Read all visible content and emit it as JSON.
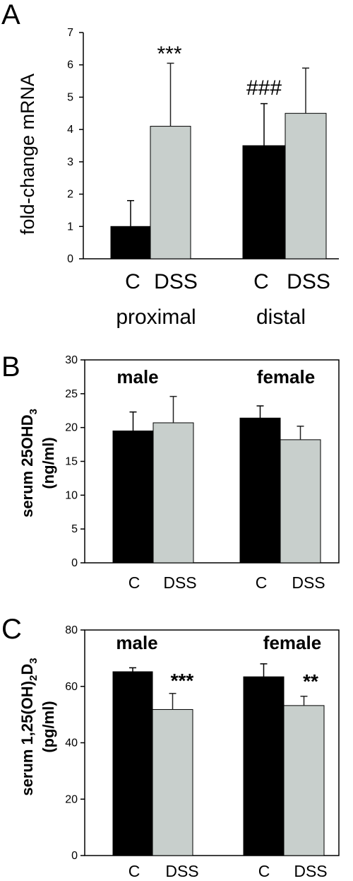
{
  "panels": [
    {
      "letter": "A",
      "ylabel_main": "fold-change mRNA",
      "ylabel_sub": "",
      "ylabel_sub2": "",
      "yticks": [
        "0",
        "1",
        "2",
        "3",
        "4",
        "5",
        "6",
        "7"
      ],
      "categories": [
        "C",
        "DSS",
        "C",
        "DSS"
      ],
      "groups": [
        "proximal",
        "distal"
      ],
      "annotations": [
        "***",
        "###"
      ]
    },
    {
      "letter": "B",
      "ylabel_main": "serum 25OHD",
      "ylabel_sub": "3",
      "ylabel_sub2": "",
      "ylabel_line2": "(ng/ml)",
      "yticks": [
        "0",
        "5",
        "10",
        "15",
        "20",
        "25",
        "30"
      ],
      "categories": [
        "C",
        "DSS",
        "C",
        "DSS"
      ],
      "groups": [
        "male",
        "female"
      ],
      "annotations": []
    },
    {
      "letter": "C",
      "ylabel_main": "serum 1,25(OH)",
      "ylabel_sub": "2",
      "ylabel_mid": "D",
      "ylabel_sub2": "3",
      "ylabel_line2": "(pg/ml)",
      "yticks": [
        "0",
        "20",
        "40",
        "60",
        "80"
      ],
      "categories": [
        "C",
        "DSS",
        "C",
        "DSS"
      ],
      "groups": [
        "male",
        "female"
      ],
      "annotations": [
        "***",
        "**"
      ]
    }
  ],
  "colors": {
    "control": "#000000",
    "dss": "#c8cfcc",
    "axis": "#000000"
  },
  "chart_data": [
    {
      "type": "bar",
      "panel": "A",
      "ylabel": "fold-change mRNA",
      "ylim": [
        0,
        7
      ],
      "categories": [
        "proximal C",
        "proximal DSS",
        "distal C",
        "distal DSS"
      ],
      "series": [
        {
          "values": [
            1.0,
            4.1,
            3.5,
            4.5
          ],
          "errors": [
            0.8,
            1.95,
            1.3,
            1.4
          ]
        }
      ],
      "annotations": [
        {
          "text": "***",
          "category": "proximal DSS"
        },
        {
          "text": "###",
          "category": "distal C"
        }
      ]
    },
    {
      "type": "bar",
      "panel": "B",
      "ylabel": "serum 25OHD3 (ng/ml)",
      "ylim": [
        0,
        30
      ],
      "categories": [
        "male C",
        "male DSS",
        "female C",
        "female DSS"
      ],
      "series": [
        {
          "values": [
            19.5,
            20.7,
            21.4,
            18.2
          ],
          "errors": [
            2.8,
            3.9,
            1.8,
            2.0
          ]
        }
      ]
    },
    {
      "type": "bar",
      "panel": "C",
      "ylabel": "serum 1,25(OH)2D3 (pg/ml)",
      "ylim": [
        0,
        80
      ],
      "categories": [
        "male C",
        "male DSS",
        "female C",
        "female DSS"
      ],
      "series": [
        {
          "values": [
            65.2,
            51.8,
            63.4,
            53.2
          ],
          "errors": [
            1.4,
            5.7,
            4.6,
            3.3
          ]
        }
      ],
      "annotations": [
        {
          "text": "***",
          "category": "male DSS"
        },
        {
          "text": "**",
          "category": "female DSS"
        }
      ]
    }
  ]
}
